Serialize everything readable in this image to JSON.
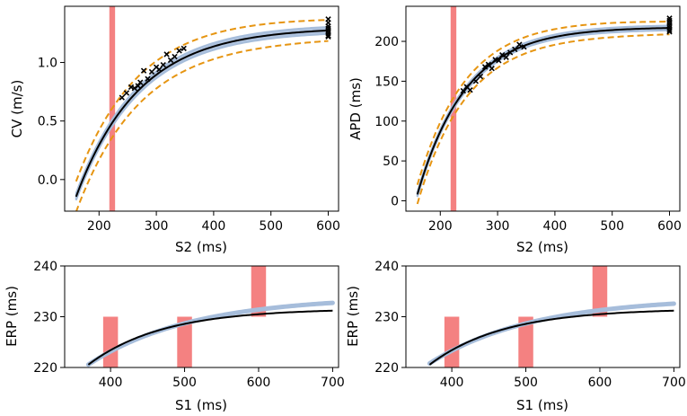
{
  "chart_data": [
    {
      "id": "cv",
      "type": "line",
      "xlabel": "S2 (ms)",
      "ylabel": "CV (m/s)",
      "xlim": [
        140,
        618
      ],
      "ylim": [
        -0.27,
        1.48
      ],
      "xticks": [
        200,
        300,
        400,
        500,
        600
      ],
      "yticks": [
        0.0,
        0.5,
        1.0
      ],
      "ytick_labels": [
        "0.0",
        "0.5",
        "1.0"
      ],
      "fn": {
        "a": 1.3,
        "b": 1.446,
        "tau": 110
      },
      "x_range": [
        160,
        600
      ],
      "band_halfwidth": 0.03,
      "envelope_offset": 0.09,
      "envelope_grow": 0.04,
      "shaded_regions": [
        {
          "x0": 218,
          "x1": 228,
          "y0": -0.27,
          "y1": 1.48
        }
      ],
      "scatter": [
        [
          240,
          0.7
        ],
        [
          248,
          0.74
        ],
        [
          256,
          0.79
        ],
        [
          262,
          0.78
        ],
        [
          268,
          0.8
        ],
        [
          272,
          0.83
        ],
        [
          278,
          0.93
        ],
        [
          285,
          0.86
        ],
        [
          292,
          0.92
        ],
        [
          300,
          0.96
        ],
        [
          305,
          0.94
        ],
        [
          312,
          0.98
        ],
        [
          318,
          1.07
        ],
        [
          325,
          1.02
        ],
        [
          332,
          1.05
        ],
        [
          340,
          1.1
        ],
        [
          348,
          1.12
        ],
        [
          600,
          1.37
        ],
        [
          600,
          1.34
        ],
        [
          600,
          1.31
        ],
        [
          600,
          1.29
        ],
        [
          600,
          1.27
        ],
        [
          600,
          1.25
        ],
        [
          600,
          1.23
        ],
        [
          600,
          1.22
        ]
      ]
    },
    {
      "id": "apd",
      "type": "line",
      "xlabel": "S2 (ms)",
      "ylabel": "APD (ms)",
      "xlim": [
        140,
        618
      ],
      "ylim": [
        -13,
        244
      ],
      "xticks": [
        200,
        300,
        400,
        500,
        600
      ],
      "yticks": [
        0,
        50,
        100,
        150,
        200
      ],
      "ytick_labels": [
        "0",
        "50",
        "100",
        "150",
        "200"
      ],
      "fn": {
        "a": 218,
        "b": 210,
        "tau": 85
      },
      "x_range": [
        160,
        600
      ],
      "band_halfwidth": 3,
      "envelope_offset": 8,
      "envelope_grow": 4,
      "shaded_regions": [
        {
          "x0": 218,
          "x1": 228,
          "y0": -13,
          "y1": 244
        }
      ],
      "scatter": [
        [
          240,
          138
        ],
        [
          246,
          143
        ],
        [
          252,
          139
        ],
        [
          262,
          150
        ],
        [
          270,
          156
        ],
        [
          278,
          168
        ],
        [
          284,
          171
        ],
        [
          290,
          166
        ],
        [
          296,
          177
        ],
        [
          302,
          176
        ],
        [
          308,
          183
        ],
        [
          315,
          180
        ],
        [
          322,
          186
        ],
        [
          330,
          190
        ],
        [
          338,
          196
        ],
        [
          346,
          193
        ],
        [
          600,
          229
        ],
        [
          600,
          226
        ],
        [
          600,
          223
        ],
        [
          600,
          220
        ],
        [
          600,
          217
        ],
        [
          600,
          214
        ],
        [
          600,
          212
        ]
      ]
    },
    {
      "id": "erp-left",
      "type": "line",
      "xlabel": "S1 (ms)",
      "ylabel": "ERP (ms)",
      "xlim": [
        338,
        708
      ],
      "ylim": [
        220,
        240
      ],
      "xticks": [
        400,
        500,
        600,
        700
      ],
      "yticks": [
        220,
        230,
        240
      ],
      "ytick_labels": [
        "220",
        "230",
        "240"
      ],
      "black_fn": {
        "a": 231.6,
        "b": 13.5,
        "c": 350,
        "tau": 100
      },
      "blue_fn": {
        "a": 234.0,
        "b": 15.5,
        "c": 350,
        "tau": 140
      },
      "x_range": [
        370,
        700
      ],
      "shaded_regions": [
        {
          "x0": 390,
          "x1": 410,
          "y0": 220,
          "y1": 230
        },
        {
          "x0": 490,
          "x1": 510,
          "y0": 220,
          "y1": 230
        },
        {
          "x0": 590,
          "x1": 610,
          "y0": 230,
          "y1": 240
        }
      ]
    },
    {
      "id": "erp-right",
      "type": "line",
      "xlabel": "S1 (ms)",
      "ylabel": "ERP (ms)",
      "xlim": [
        338,
        708
      ],
      "ylim": [
        220,
        240
      ],
      "xticks": [
        400,
        500,
        600,
        700
      ],
      "yticks": [
        220,
        230,
        240
      ],
      "ytick_labels": [
        "220",
        "230",
        "240"
      ],
      "black_fn": {
        "a": 231.6,
        "b": 13.5,
        "c": 350,
        "tau": 100
      },
      "blue_fn": {
        "a": 233.8,
        "b": 15.0,
        "c": 350,
        "tau": 140
      },
      "x_range": [
        370,
        700
      ],
      "shaded_regions": [
        {
          "x0": 390,
          "x1": 410,
          "y0": 220,
          "y1": 230
        },
        {
          "x0": 490,
          "x1": 510,
          "y0": 220,
          "y1": 230
        },
        {
          "x0": 590,
          "x1": 610,
          "y0": 230,
          "y1": 240
        }
      ]
    }
  ],
  "colors": {
    "mean_line": "#000000",
    "uncertainty_band": "#a6bddb",
    "envelope": "#e69512",
    "shaded_region": "#f26b6b",
    "scatter": "#000000"
  }
}
